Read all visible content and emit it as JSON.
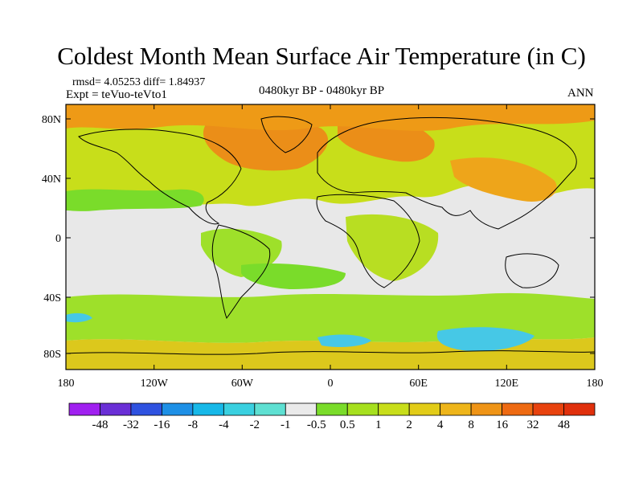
{
  "title": "Coldest Month Mean Surface Air Temperature (in C)",
  "stats_text": "rmsd= 4.05253 diff= 1.84937",
  "experiment_text": "Expt = teVuo-teVto1",
  "period_text": "0480kyr BP - 0480kyr BP",
  "season_text": "ANN",
  "lat_ticks": [
    "80N",
    "40N",
    "0",
    "40S",
    "80S"
  ],
  "lon_ticks": [
    "180",
    "120W",
    "60W",
    "0",
    "60E",
    "120E",
    "180"
  ],
  "colorbar": {
    "labels": [
      "-48",
      "-32",
      "-16",
      "-8",
      "-4",
      "-2",
      "-1",
      "-0.5",
      "0.5",
      "1",
      "2",
      "4",
      "8",
      "16",
      "32",
      "48"
    ],
    "colors": [
      "#a020f0",
      "#6a2fd6",
      "#2f52e0",
      "#1e90e6",
      "#17b8e8",
      "#3ad0e0",
      "#5ee0d2",
      "#eaeaea",
      "#7adc2a",
      "#a6e01e",
      "#c8de1a",
      "#e2cc18",
      "#eeb51a",
      "#ef9416",
      "#ee6a12",
      "#e8420e"
    ]
  },
  "map_colors": {
    "ocean_neutral": "#e8e8e8",
    "weak_warm": "#9ee02a",
    "warm": "#dcc81c",
    "hot": "#eb8e18",
    "hottest": "#e86a12",
    "cool": "#46c8e6"
  }
}
